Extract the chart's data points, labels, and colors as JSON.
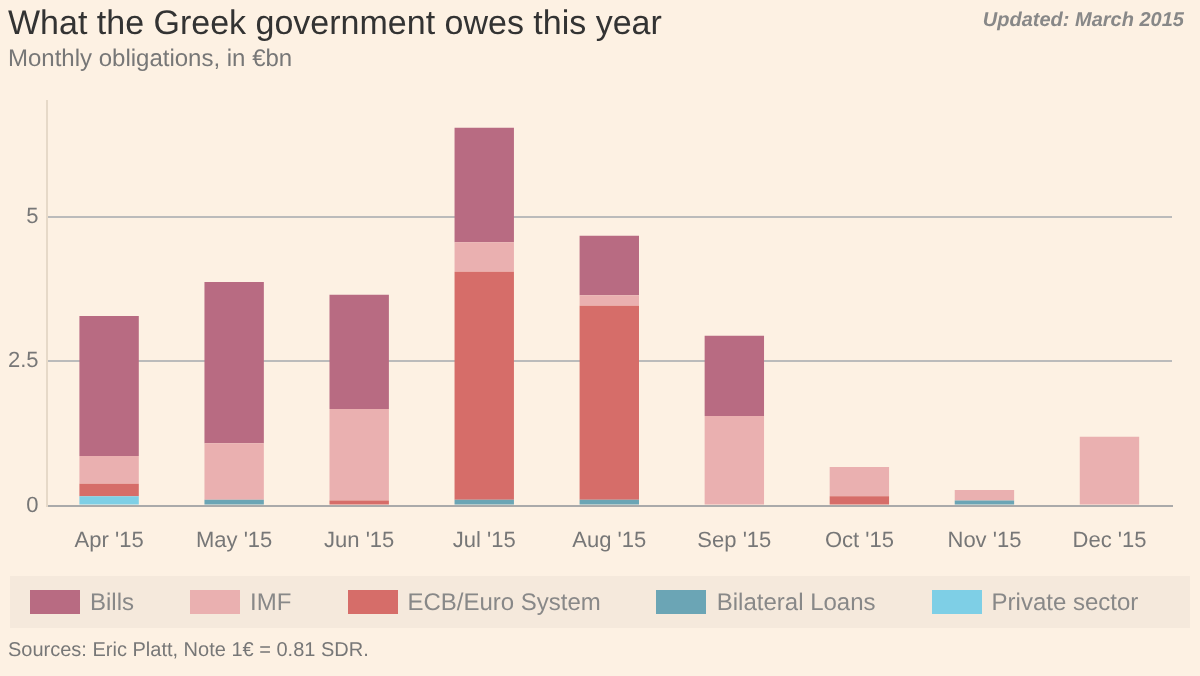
{
  "chart_data": {
    "type": "bar",
    "title": "What the Greek government owes this year",
    "subtitle": "Monthly obligations, in €bn",
    "annotations": [
      "Updated: March 2015",
      "Sources: Eric Platt, Note 1€ = 0.81 SDR."
    ],
    "categories": [
      "Apr '15",
      "May '15",
      "Jun '15",
      "Jul '15",
      "Aug '15",
      "Sep '15",
      "Oct '15",
      "Nov '15",
      "Dec '15"
    ],
    "stacked": true,
    "ylim": [
      0,
      7
    ],
    "yticks": [
      0,
      2.5,
      5
    ],
    "grid": "y",
    "legend": "bottom",
    "series": [
      {
        "name": "Private sector",
        "color": "#7ecfe6",
        "values": [
          0.16,
          0,
          0,
          0,
          0,
          0,
          0,
          0,
          0
        ]
      },
      {
        "name": "Bilateral Loans",
        "color": "#6ba5b5",
        "values": [
          0,
          0.1,
          0,
          0.1,
          0.1,
          0,
          0,
          0.09,
          0
        ]
      },
      {
        "name": "ECB/Euro System",
        "color": "#d66d69",
        "values": [
          0.22,
          0,
          0.09,
          3.95,
          3.36,
          0,
          0.16,
          0,
          0
        ]
      },
      {
        "name": "IMF",
        "color": "#eab0b0",
        "values": [
          0.48,
          0.98,
          1.58,
          0.51,
          0.18,
          1.55,
          0.51,
          0.18,
          1.19
        ]
      },
      {
        "name": "Bills",
        "color": "#b86b82",
        "values": [
          2.42,
          2.79,
          1.98,
          1.98,
          1.03,
          1.39,
          0,
          0,
          0
        ]
      }
    ]
  }
}
